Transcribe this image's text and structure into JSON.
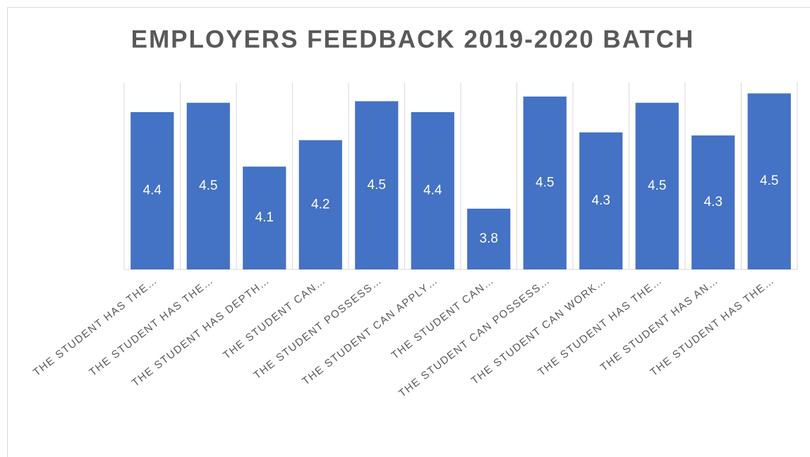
{
  "chart_data": {
    "type": "bar",
    "title": "EMPLOYERS FEEDBACK 2019-2020 BATCH",
    "categories": [
      "THE STUDENT HAS THE…",
      "THE STUDENT HAS THE…",
      "THE STUDENT HAS DEPTH…",
      "THE STUDENT CAN…",
      "THE STUDENT POSSESS…",
      "THE STUDENT CAN APPLY…",
      "THE STUDENT CAN…",
      "THE STUDENT CAN POSSESS…",
      "THE STUDENT CAN WORK…",
      "THE STUDENT HAS THE…",
      "THE STUDENT HAS AN…",
      "THE STUDENT HAS THE…"
    ],
    "values": [
      4.41,
      4.47,
      4.06,
      4.23,
      4.48,
      4.41,
      3.79,
      4.51,
      4.28,
      4.47,
      4.26,
      4.53
    ],
    "value_labels": [
      "4.4",
      "4.5",
      "4.1",
      "4.2",
      "4.5",
      "4.4",
      "3.8",
      "4.5",
      "4.3",
      "4.5",
      "4.3",
      "4.5"
    ],
    "color": "#4472c4",
    "ylim": [
      3.4,
      4.6
    ],
    "grid": true
  }
}
